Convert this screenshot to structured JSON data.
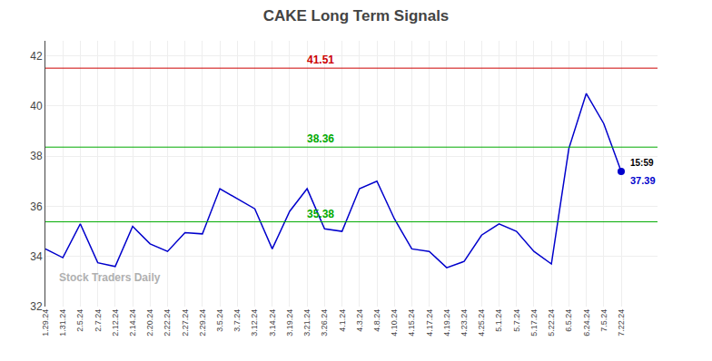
{
  "chart_data": {
    "type": "line",
    "title": "CAKE Long Term Signals",
    "categories": [
      "1.29.24",
      "1.31.24",
      "2.5.24",
      "2.7.24",
      "2.12.24",
      "2.14.24",
      "2.20.24",
      "2.22.24",
      "2.27.24",
      "2.29.24",
      "3.5.24",
      "3.7.24",
      "3.12.24",
      "3.14.24",
      "3.19.24",
      "3.21.24",
      "3.26.24",
      "4.1.24",
      "4.3.24",
      "4.8.24",
      "4.10.24",
      "4.15.24",
      "4.17.24",
      "4.19.24",
      "4.23.24",
      "4.25.24",
      "5.1.24",
      "5.7.24",
      "5.17.24",
      "5.22.24",
      "6.5.24",
      "6.24.24",
      "7.5.24",
      "7.22.24"
    ],
    "values": [
      34.3,
      33.95,
      35.3,
      33.75,
      33.6,
      35.2,
      34.5,
      34.2,
      34.95,
      34.9,
      36.7,
      36.3,
      35.9,
      34.3,
      35.8,
      36.7,
      35.1,
      35.0,
      36.7,
      37.0,
      35.5,
      34.3,
      34.2,
      33.55,
      33.8,
      34.85,
      35.3,
      35.0,
      34.2,
      33.7,
      38.3,
      40.5,
      39.3,
      37.39
    ],
    "color": "#0000cc",
    "ylim": [
      32,
      42.6
    ],
    "yticks": [
      32,
      34,
      36,
      38,
      40,
      42
    ],
    "grid": true,
    "reference_lines": [
      {
        "value": 41.51,
        "label": "41.51",
        "color": "#cc0000"
      },
      {
        "value": 38.36,
        "label": "38.36",
        "color": "#00aa00"
      },
      {
        "value": 35.38,
        "label": "35.38",
        "color": "#00aa00"
      }
    ],
    "last_point": {
      "time": "15:59",
      "label": "37.39",
      "color": "#0000cc"
    },
    "watermark": "Stock Traders Daily"
  }
}
